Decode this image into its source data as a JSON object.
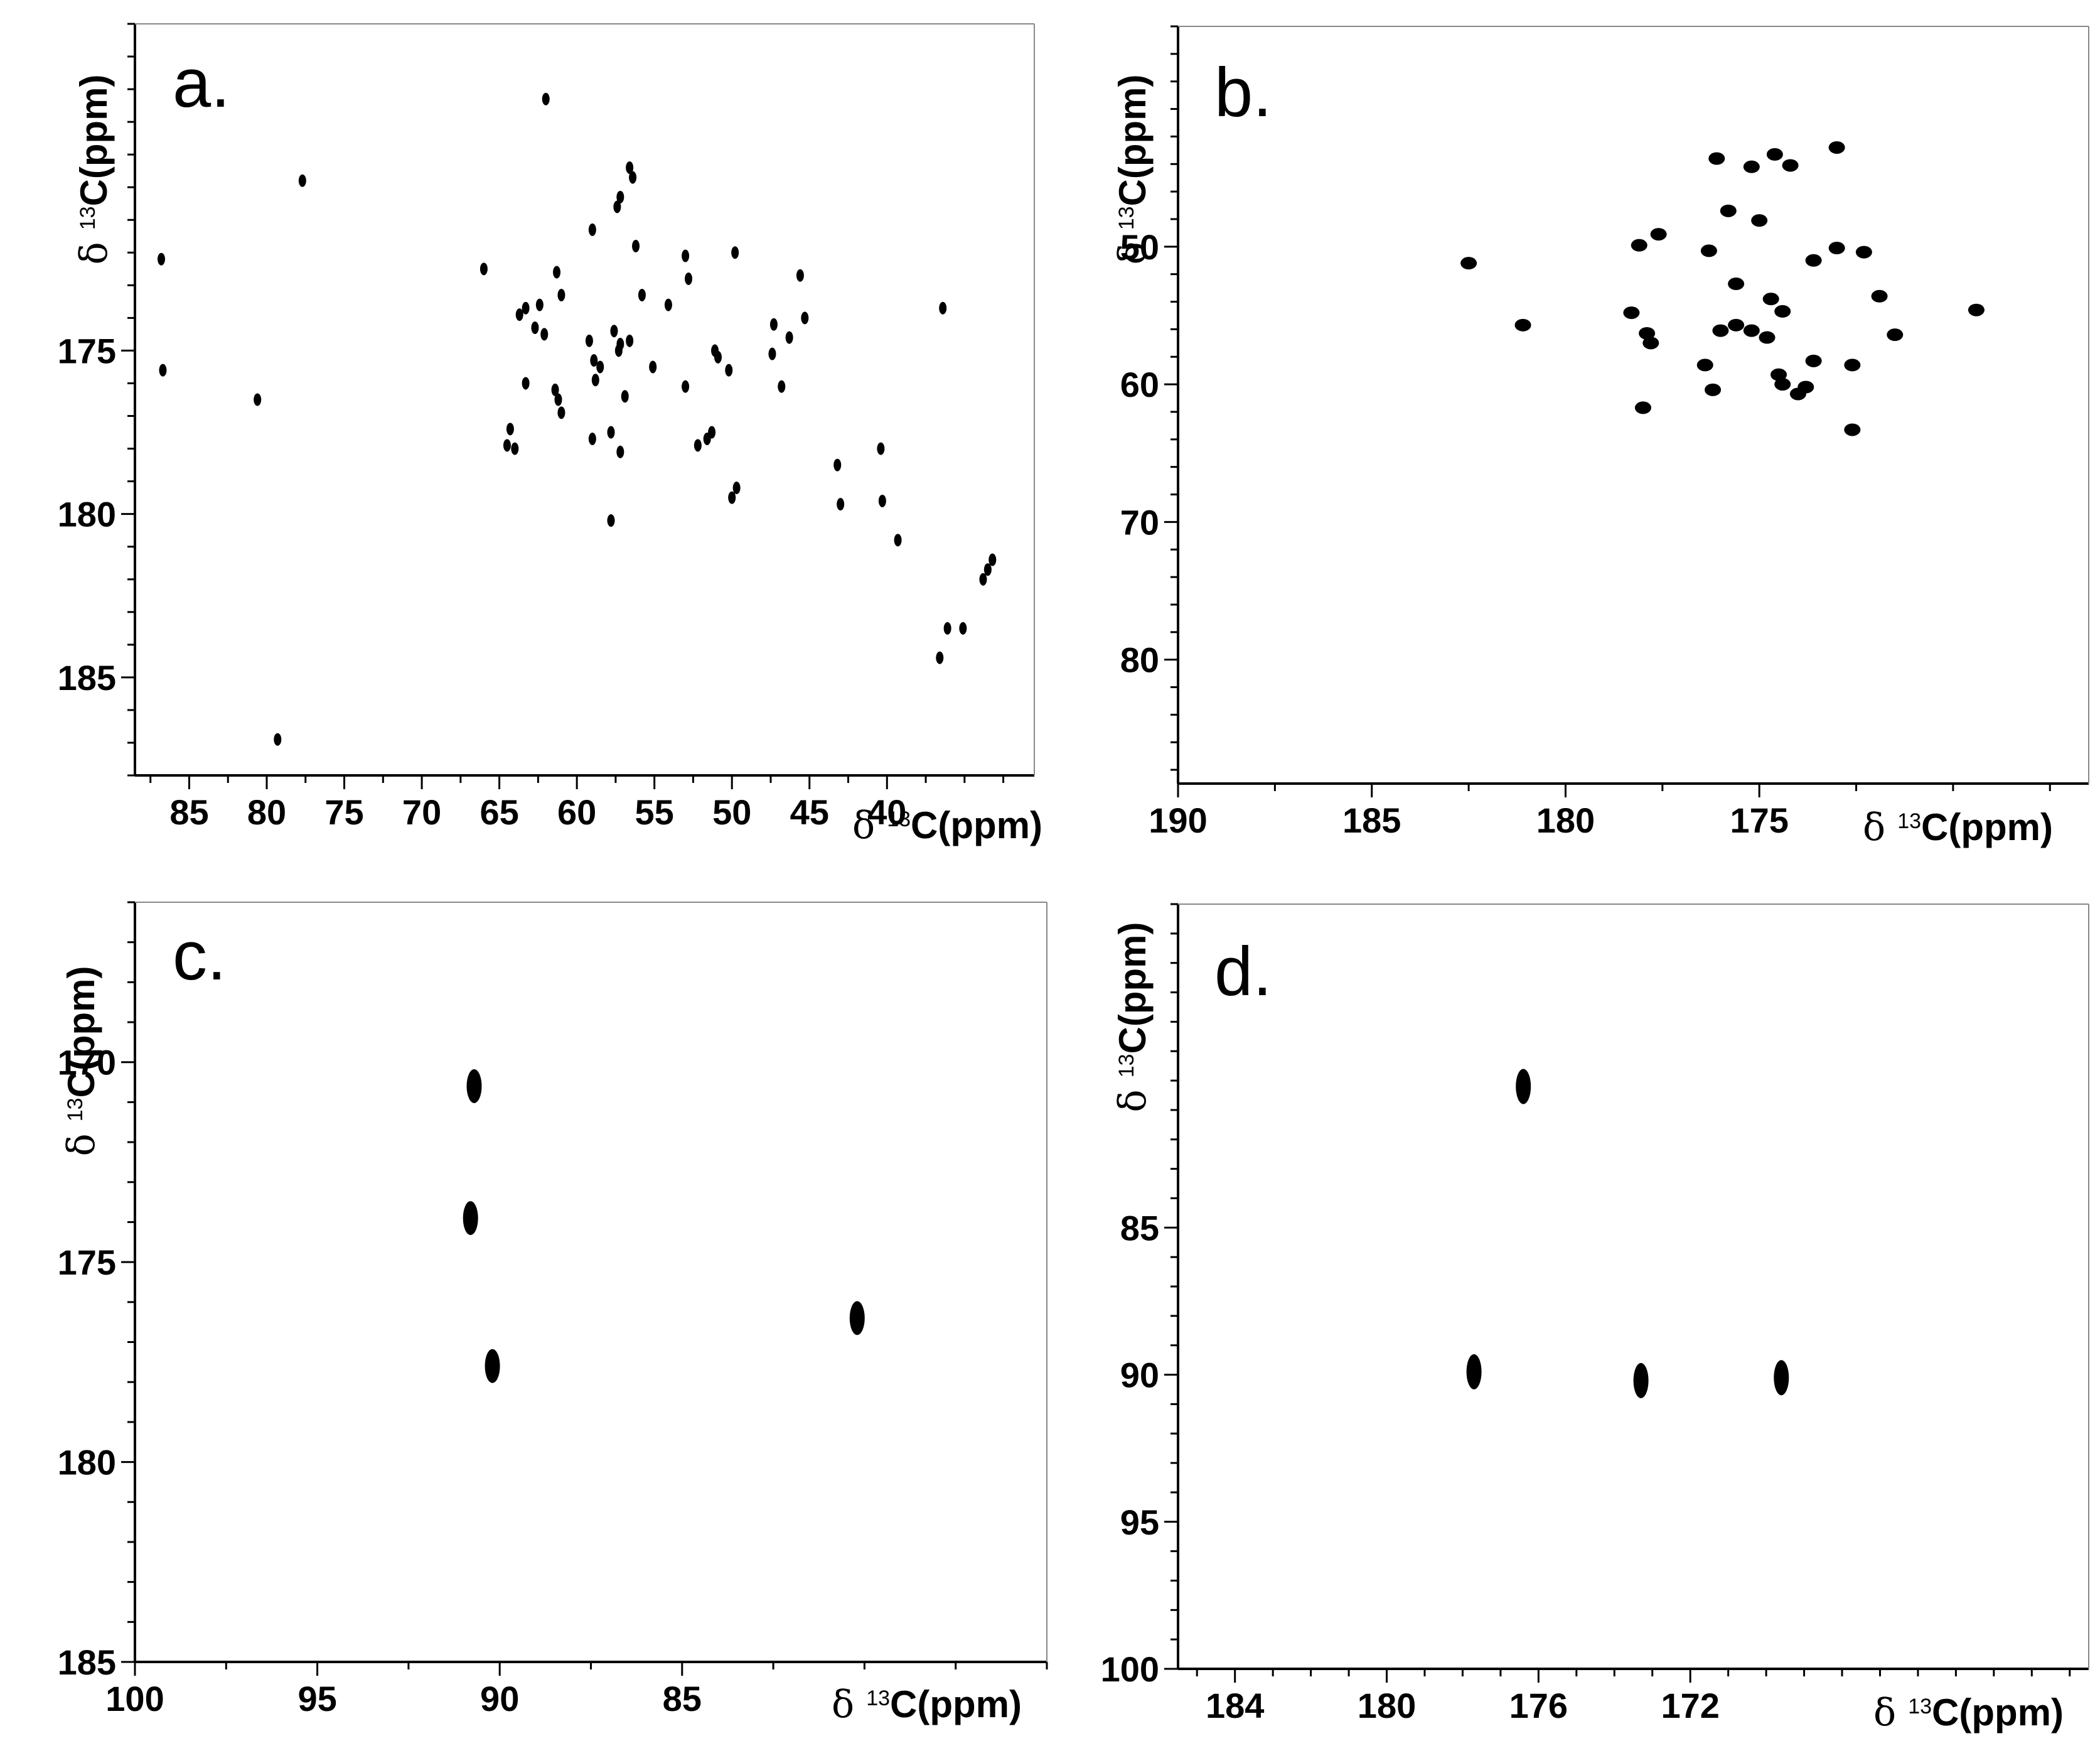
{
  "chart_data": [
    {
      "type": "scatter",
      "panel_label": "a.",
      "xlabel": "δ 13C(ppm)",
      "ylabel": "δ 13C(ppm)",
      "xlim": [
        88.5,
        30.5
      ],
      "ylim": [
        165.0,
        188.0
      ],
      "x_ticks": [
        85,
        80,
        75,
        70,
        65,
        60,
        55,
        50,
        45,
        40
      ],
      "y_ticks": [
        175,
        180,
        185
      ],
      "grid": false,
      "points": [
        [
          62.0,
          167.3
        ],
        [
          77.7,
          169.8
        ],
        [
          56.4,
          169.7
        ],
        [
          56.6,
          169.4
        ],
        [
          57.2,
          170.3
        ],
        [
          57.4,
          170.6
        ],
        [
          86.8,
          172.2
        ],
        [
          86.7,
          175.6
        ],
        [
          80.6,
          176.5
        ],
        [
          79.3,
          186.9
        ],
        [
          66.0,
          172.5
        ],
        [
          59.0,
          171.3
        ],
        [
          56.2,
          171.8
        ],
        [
          53.0,
          172.1
        ],
        [
          52.8,
          172.8
        ],
        [
          49.8,
          172.0
        ],
        [
          45.6,
          172.7
        ],
        [
          61.3,
          172.6
        ],
        [
          61.0,
          173.3
        ],
        [
          55.8,
          173.3
        ],
        [
          54.1,
          173.6
        ],
        [
          63.7,
          173.9
        ],
        [
          63.3,
          173.7
        ],
        [
          62.7,
          174.3
        ],
        [
          62.1,
          174.5
        ],
        [
          62.4,
          173.6
        ],
        [
          59.2,
          174.7
        ],
        [
          58.9,
          175.3
        ],
        [
          58.5,
          175.5
        ],
        [
          57.6,
          174.4
        ],
        [
          57.2,
          174.8
        ],
        [
          57.3,
          175.0
        ],
        [
          56.6,
          174.7
        ],
        [
          55.1,
          175.5
        ],
        [
          51.1,
          175.0
        ],
        [
          50.9,
          175.2
        ],
        [
          50.2,
          175.6
        ],
        [
          47.3,
          174.2
        ],
        [
          47.4,
          175.1
        ],
        [
          46.8,
          176.1
        ],
        [
          46.3,
          174.6
        ],
        [
          45.3,
          174.0
        ],
        [
          36.4,
          173.7
        ],
        [
          63.3,
          176.0
        ],
        [
          61.4,
          176.2
        ],
        [
          61.2,
          176.5
        ],
        [
          61.0,
          176.9
        ],
        [
          58.8,
          175.9
        ],
        [
          56.9,
          176.4
        ],
        [
          53.0,
          176.1
        ],
        [
          64.3,
          177.4
        ],
        [
          64.5,
          177.9
        ],
        [
          64.0,
          178.0
        ],
        [
          59.0,
          177.7
        ],
        [
          57.8,
          177.5
        ],
        [
          57.2,
          178.1
        ],
        [
          52.2,
          177.9
        ],
        [
          51.6,
          177.7
        ],
        [
          51.3,
          177.5
        ],
        [
          43.2,
          178.5
        ],
        [
          40.4,
          178.0
        ],
        [
          43.0,
          179.7
        ],
        [
          40.3,
          179.6
        ],
        [
          49.7,
          179.2
        ],
        [
          50.0,
          179.5
        ],
        [
          57.8,
          180.2
        ],
        [
          39.3,
          180.8
        ],
        [
          33.2,
          181.4
        ],
        [
          33.5,
          181.7
        ],
        [
          33.8,
          182.0
        ],
        [
          36.1,
          183.5
        ],
        [
          35.1,
          183.5
        ],
        [
          36.6,
          184.4
        ]
      ]
    },
    {
      "type": "scatter",
      "panel_label": "b.",
      "xlabel": "δ 13C(ppm)",
      "ylabel": "δ 13C(ppm)",
      "xlim": [
        190.0,
        166.5
      ],
      "ylim": [
        34.0,
        89.0
      ],
      "x_ticks": [
        190,
        185,
        180,
        175
      ],
      "y_ticks": [
        50,
        60,
        70,
        80
      ],
      "grid": false,
      "points": [
        [
          182.5,
          51.2
        ],
        [
          181.1,
          55.7
        ],
        [
          178.3,
          54.8
        ],
        [
          178.1,
          49.9
        ],
        [
          177.6,
          49.1
        ],
        [
          177.9,
          56.3
        ],
        [
          177.8,
          57.0
        ],
        [
          178.0,
          61.7
        ],
        [
          176.3,
          50.3
        ],
        [
          176.1,
          43.6
        ],
        [
          175.8,
          47.4
        ],
        [
          176.4,
          58.6
        ],
        [
          176.2,
          60.4
        ],
        [
          176.0,
          56.1
        ],
        [
          175.6,
          52.7
        ],
        [
          175.6,
          55.7
        ],
        [
          175.2,
          56.1
        ],
        [
          175.0,
          48.1
        ],
        [
          175.2,
          44.2
        ],
        [
          174.6,
          43.3
        ],
        [
          174.7,
          53.8
        ],
        [
          174.4,
          54.7
        ],
        [
          174.8,
          56.6
        ],
        [
          174.5,
          59.3
        ],
        [
          174.4,
          60.0
        ],
        [
          174.0,
          60.7
        ],
        [
          173.8,
          60.2
        ],
        [
          174.2,
          44.1
        ],
        [
          173.6,
          58.3
        ],
        [
          173.6,
          51.0
        ],
        [
          173.0,
          42.8
        ],
        [
          173.0,
          50.1
        ],
        [
          172.6,
          58.6
        ],
        [
          172.6,
          63.3
        ],
        [
          172.3,
          50.4
        ],
        [
          171.9,
          53.6
        ],
        [
          171.5,
          56.4
        ],
        [
          169.4,
          54.6
        ]
      ]
    },
    {
      "type": "scatter",
      "panel_label": "c.",
      "xlabel": "δ 13C(ppm)",
      "ylabel": "δ 13C(ppm)",
      "xlim": [
        100.0,
        75.0
      ],
      "ylim": [
        166.0,
        185.0
      ],
      "x_ticks": [
        100,
        95,
        90,
        85
      ],
      "y_ticks": [
        170,
        175,
        180,
        185
      ],
      "grid": false,
      "points": [
        [
          90.7,
          170.6
        ],
        [
          90.8,
          173.9
        ],
        [
          90.2,
          177.6
        ],
        [
          80.2,
          176.4
        ]
      ]
    },
    {
      "type": "scatter",
      "panel_label": "d.",
      "xlabel": "δ 13C(ppm)",
      "ylabel": "δ 13C(ppm)",
      "xlim": [
        185.5,
        161.5
      ],
      "ylim": [
        74.0,
        100.0
      ],
      "x_ticks": [
        184,
        180,
        176,
        172
      ],
      "y_ticks": [
        85,
        90,
        95,
        100
      ],
      "grid": false,
      "points": [
        [
          176.4,
          80.2
        ],
        [
          177.7,
          89.9
        ],
        [
          173.3,
          90.2
        ],
        [
          169.6,
          90.1
        ]
      ]
    }
  ]
}
